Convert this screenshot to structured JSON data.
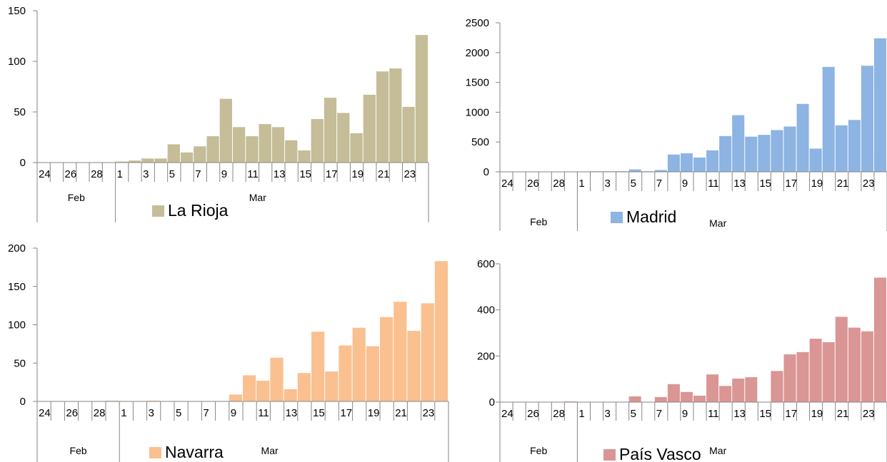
{
  "chart_data": [
    {
      "type": "bar",
      "legend": "La Rioja",
      "color": "#c4bd97",
      "ylim": [
        0,
        150
      ],
      "yticks": [
        0,
        50,
        100,
        150
      ],
      "categories": [
        "24",
        "25",
        "26",
        "27",
        "28",
        "29",
        "1",
        "2",
        "3",
        "4",
        "5",
        "6",
        "7",
        "8",
        "9",
        "10",
        "11",
        "12",
        "13",
        "14",
        "15",
        "16",
        "17",
        "18",
        "19",
        "20",
        "21",
        "22",
        "23",
        "24"
      ],
      "tick_labels": [
        "24",
        "26",
        "28",
        "1",
        "3",
        "5",
        "7",
        "9",
        "11",
        "13",
        "15",
        "17",
        "19",
        "21",
        "23"
      ],
      "groups": [
        {
          "label": "Feb",
          "count": 6
        },
        {
          "label": "Mar",
          "count": 24
        }
      ],
      "values": [
        0,
        0,
        0,
        0,
        0,
        0,
        1,
        2,
        4,
        4,
        18,
        10,
        16,
        26,
        63,
        35,
        26,
        38,
        35,
        22,
        12,
        43,
        64,
        49,
        29,
        67,
        90,
        93,
        55,
        126
      ]
    },
    {
      "type": "bar",
      "legend": "Madrid",
      "color": "#8db4e2",
      "ylim": [
        0,
        2500
      ],
      "yticks": [
        0,
        500,
        1000,
        1500,
        2000,
        2500
      ],
      "categories": [
        "24",
        "25",
        "26",
        "27",
        "28",
        "29",
        "1",
        "2",
        "3",
        "4",
        "5",
        "6",
        "7",
        "8",
        "9",
        "10",
        "11",
        "12",
        "13",
        "14",
        "15",
        "16",
        "17",
        "18",
        "19",
        "20",
        "21",
        "22",
        "23",
        "24"
      ],
      "tick_labels": [
        "24",
        "26",
        "28",
        "1",
        "3",
        "5",
        "7",
        "9",
        "11",
        "13",
        "15",
        "17",
        "19",
        "21",
        "23"
      ],
      "groups": [
        {
          "label": "Feb",
          "count": 6
        },
        {
          "label": "Mar",
          "count": 24
        }
      ],
      "values": [
        0,
        0,
        0,
        0,
        0,
        0,
        5,
        10,
        10,
        10,
        40,
        10,
        30,
        290,
        310,
        240,
        360,
        600,
        950,
        590,
        620,
        700,
        760,
        1140,
        390,
        1760,
        780,
        870,
        1780,
        2240
      ]
    },
    {
      "type": "bar",
      "legend": "Navarra",
      "color": "#fac090",
      "ylim": [
        0,
        200
      ],
      "yticks": [
        0,
        50,
        100,
        150,
        200
      ],
      "categories": [
        "24",
        "25",
        "26",
        "27",
        "28",
        "29",
        "1",
        "2",
        "3",
        "4",
        "5",
        "6",
        "7",
        "8",
        "9",
        "10",
        "11",
        "12",
        "13",
        "14",
        "15",
        "16",
        "17",
        "18",
        "19",
        "20",
        "21",
        "22",
        "23",
        "24"
      ],
      "tick_labels": [
        "24",
        "26",
        "28",
        "1",
        "3",
        "5",
        "7",
        "9",
        "11",
        "13",
        "15",
        "17",
        "19",
        "21",
        "23"
      ],
      "groups": [
        {
          "label": "Feb",
          "count": 6
        },
        {
          "label": "Mar",
          "count": 24
        }
      ],
      "values": [
        0,
        0,
        0,
        0,
        0,
        1,
        0,
        0,
        1,
        0,
        0,
        0,
        0,
        0,
        9,
        34,
        27,
        57,
        16,
        37,
        91,
        39,
        73,
        96,
        72,
        110,
        130,
        92,
        128,
        183
      ]
    },
    {
      "type": "bar",
      "legend": "País Vasco",
      "color": "#da9694",
      "ylim": [
        0,
        600
      ],
      "yticks": [
        0,
        200,
        400,
        600
      ],
      "categories": [
        "24",
        "25",
        "26",
        "27",
        "28",
        "29",
        "1",
        "2",
        "3",
        "4",
        "5",
        "6",
        "7",
        "8",
        "9",
        "10",
        "11",
        "12",
        "13",
        "14",
        "15",
        "16",
        "17",
        "18",
        "19",
        "20",
        "21",
        "22",
        "23",
        "24"
      ],
      "tick_labels": [
        "24",
        "26",
        "28",
        "1",
        "3",
        "5",
        "7",
        "9",
        "11",
        "13",
        "15",
        "17",
        "19",
        "21",
        "23"
      ],
      "groups": [
        {
          "label": "Feb",
          "count": 6
        },
        {
          "label": "Mar",
          "count": 24
        }
      ],
      "values": [
        0,
        0,
        0,
        0,
        0,
        3,
        0,
        0,
        0,
        0,
        25,
        0,
        22,
        78,
        44,
        28,
        120,
        70,
        102,
        108,
        0,
        135,
        207,
        217,
        275,
        260,
        370,
        323,
        307,
        540
      ]
    }
  ]
}
